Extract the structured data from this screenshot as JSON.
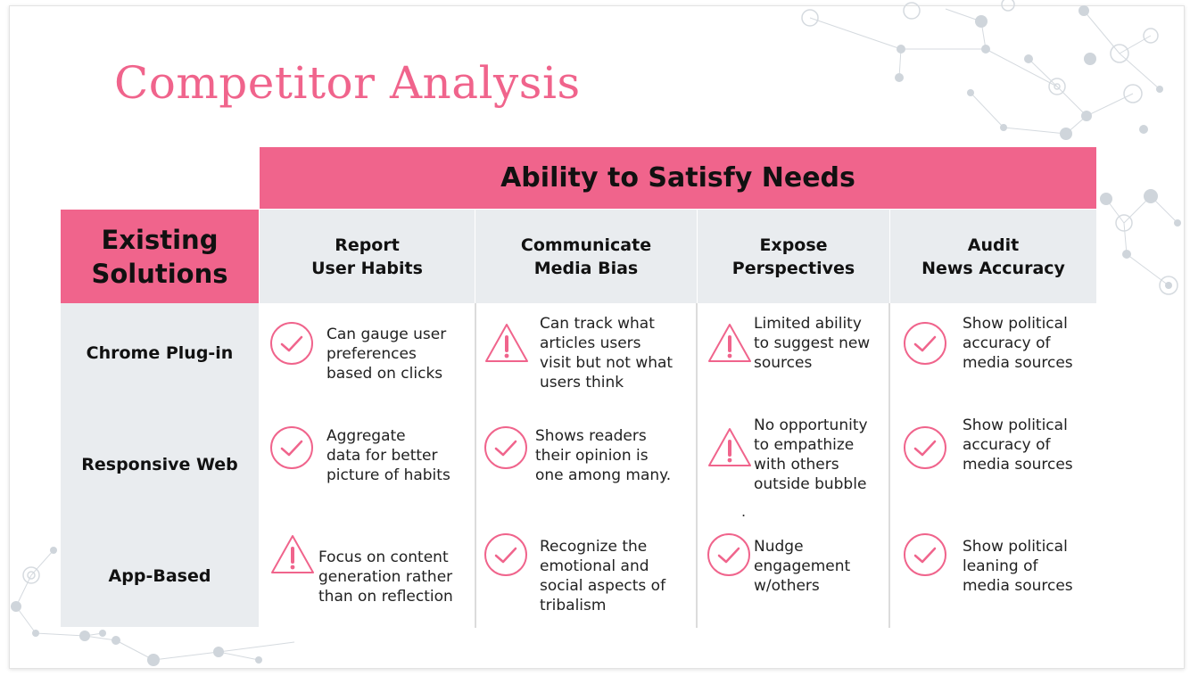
{
  "slide": {
    "title": "Competitor Analysis",
    "accent_color": "#f0648c",
    "header_bg": "#e9ecef"
  },
  "table": {
    "banner": "Ability to Satisfy Needs",
    "corner": {
      "line1": "Existing",
      "line2": "Solutions"
    },
    "columns": [
      {
        "line1": "Report",
        "line2": "User Habits"
      },
      {
        "line1": "Communicate",
        "line2": "Media Bias"
      },
      {
        "line1": "Expose",
        "line2": "Perspectives"
      },
      {
        "line1": "Audit",
        "line2": "News Accuracy"
      }
    ],
    "rows": [
      {
        "label": "Chrome Plug-in",
        "cells": [
          {
            "icon": "check-circle-icon",
            "lines": [
              "Can gauge user",
              "preferences",
              "based on clicks"
            ]
          },
          {
            "icon": "warning-triangle-icon",
            "lines": [
              "Can track what",
              "articles users",
              "visit but not what",
              "users think"
            ]
          },
          {
            "icon": "warning-triangle-icon",
            "lines": [
              "Limited ability",
              "to suggest new",
              "sources"
            ]
          },
          {
            "icon": "check-circle-icon",
            "lines": [
              "Show political",
              "accuracy of",
              "media sources"
            ]
          }
        ]
      },
      {
        "label": "Responsive Web",
        "cells": [
          {
            "icon": "check-circle-icon",
            "lines": [
              "Aggregate",
              "data for better",
              "picture of habits"
            ]
          },
          {
            "icon": "check-circle-icon",
            "lines": [
              "Shows readers",
              "their opinion is",
              "one among many."
            ]
          },
          {
            "icon": "warning-triangle-icon",
            "lines": [
              "No opportunity",
              "to empathize",
              "with others",
              "outside bubble"
            ]
          },
          {
            "icon": "check-circle-icon",
            "lines": [
              "Show political",
              "accuracy of",
              "media sources"
            ]
          }
        ]
      },
      {
        "label": "App-Based",
        "cells": [
          {
            "icon": "warning-triangle-icon",
            "lines": [
              "Focus on content",
              "generation rather",
              "than on reflection"
            ]
          },
          {
            "icon": "check-circle-icon",
            "lines": [
              "Recognize the",
              "emotional and",
              "social aspects of",
              "tribalism"
            ]
          },
          {
            "icon": "check-circle-icon",
            "lines": [
              "Nudge",
              "engagement",
              "w/others"
            ]
          },
          {
            "icon": "check-circle-icon",
            "lines": [
              "Show political",
              "leaning of",
              "media sources"
            ]
          }
        ]
      }
    ],
    "stray_mark": "."
  }
}
